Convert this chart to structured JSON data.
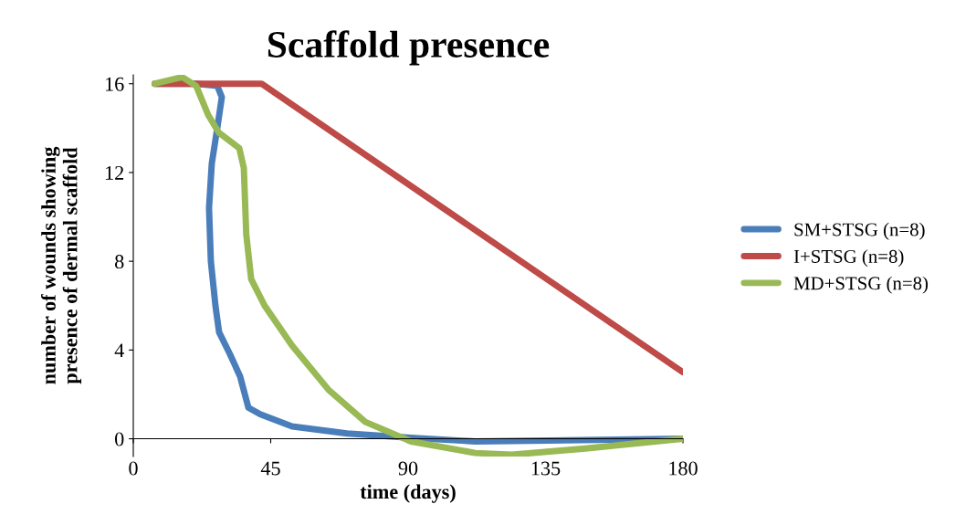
{
  "chart_data": {
    "type": "line",
    "title": "Scaffold presence",
    "xlabel": "time (days)",
    "ylabel": "number of wounds showing\npresence of dermal scaffold",
    "xlim": [
      0,
      180
    ],
    "xticks": [
      0,
      45,
      90,
      135,
      180
    ],
    "ylim": [
      -0.8,
      16.4
    ],
    "yticks": [
      0,
      4,
      8,
      12,
      16
    ],
    "grid": false,
    "legend": "right",
    "marker": "none",
    "line_style": "solid",
    "series": [
      {
        "name": "SM+STSG (n=8)",
        "color": "#4a7ebb",
        "x": [
          7.2,
          20.6,
          27.5,
          29,
          27.5,
          25.7,
          24.8,
          25.4,
          26.9,
          28.1,
          31.7,
          35,
          37.7,
          41.6,
          52,
          70,
          91,
          112,
          136,
          180
        ],
        "values": [
          16,
          16,
          15.9,
          15.4,
          14,
          12.4,
          10.4,
          8,
          6,
          4.8,
          3.8,
          2.8,
          1.4,
          1.1,
          0.56,
          0.24,
          0.04,
          -0.12,
          -0.08,
          0
        ]
      },
      {
        "name": "I+STSG (n=8)",
        "color": "#be4b48",
        "x": [
          7,
          25,
          42,
          180
        ],
        "values": [
          16,
          16,
          16,
          3
        ]
      },
      {
        "name": "MD+STSG (n=8)",
        "color": "#98b954",
        "x": [
          7,
          16,
          20.6,
          24.5,
          28,
          34.7,
          36.2,
          37,
          38.6,
          43,
          52,
          64,
          76,
          91,
          112,
          124,
          148,
          180
        ],
        "values": [
          16,
          16.3,
          15.9,
          14.6,
          13.8,
          13.1,
          12.2,
          9.2,
          7.2,
          6,
          4.2,
          2.2,
          0.76,
          -0.12,
          -0.64,
          -0.72,
          -0.44,
          0
        ]
      }
    ]
  }
}
